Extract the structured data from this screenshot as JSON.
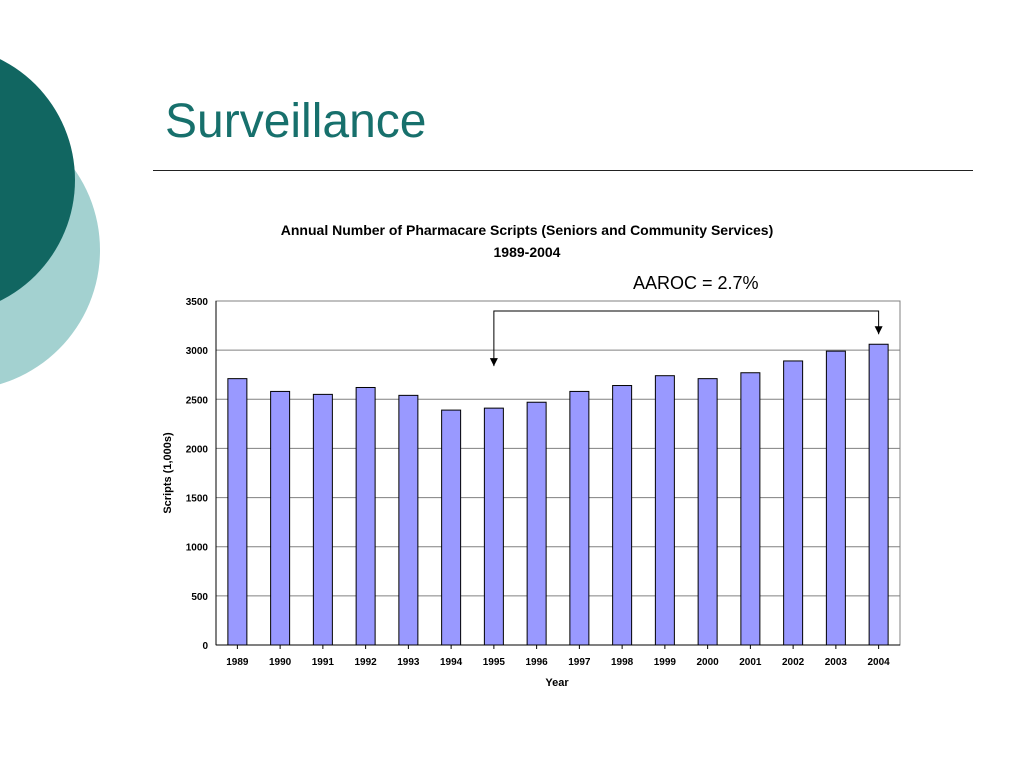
{
  "slide": {
    "title": "Surveillance",
    "annotation": "AAROC = 2.7%",
    "colors": {
      "title": "#17706c",
      "circle_dark": "#116661",
      "circle_light": "#a3d1d0"
    }
  },
  "chart_data": {
    "type": "bar",
    "title": "Annual Number of Pharmacare Scripts (Seniors and Community Services)",
    "subtitle": "1989-2004",
    "xlabel": "Year",
    "ylabel": "Scripts (1,000s)",
    "ylim": [
      0,
      3500
    ],
    "yticks": [
      0,
      500,
      1000,
      1500,
      2000,
      2500,
      3000,
      3500
    ],
    "grid": true,
    "legend": "none",
    "bar_color": "#9999ff",
    "categories": [
      "1989",
      "1990",
      "1991",
      "1992",
      "1993",
      "1994",
      "1995",
      "1996",
      "1997",
      "1998",
      "1999",
      "2000",
      "2001",
      "2002",
      "2003",
      "2004"
    ],
    "values": [
      2710,
      2580,
      2550,
      2620,
      2540,
      2390,
      2410,
      2470,
      2580,
      2640,
      2740,
      2710,
      2770,
      2890,
      2990,
      3060
    ],
    "bracket": {
      "from": "1995",
      "to": "2004"
    }
  }
}
